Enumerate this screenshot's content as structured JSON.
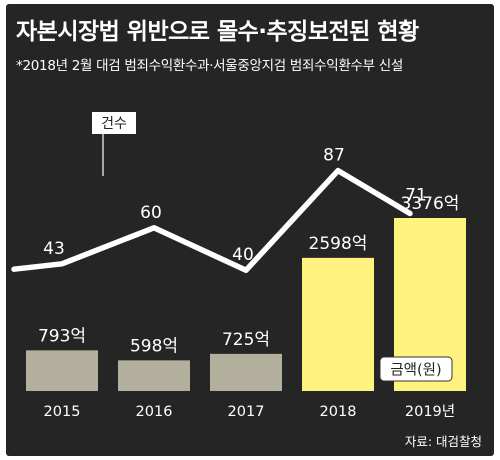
{
  "title": "자본시장법 위반으로 몰수·추징보전된 현황",
  "subtitle": "*2018년 2월 대검 범죄수익환수과·서울중앙지검 범죄수익환수부 신설",
  "source": "자료: 대검찰청",
  "colors": {
    "background": "#252525",
    "bar_past": "#b2b09c",
    "bar_recent": "#fff27e",
    "line": "#ffffff",
    "text": "#ffffff",
    "label_box_bg": "#ffffff",
    "label_box_text": "#222222"
  },
  "chart_data": [
    {
      "type": "line",
      "series": [
        {
          "name": "건수",
          "values": [
            43,
            60,
            40,
            87,
            71
          ]
        }
      ],
      "categories": [
        "2015",
        "2016",
        "2017",
        "2018",
        "2019년"
      ],
      "value_labels": [
        "43",
        "60",
        "40",
        "87",
        "71"
      ],
      "legend_label": "건수"
    },
    {
      "type": "bar",
      "series": [
        {
          "name": "금액(원)",
          "values": [
            793,
            598,
            725,
            2598,
            3376
          ]
        }
      ],
      "categories": [
        "2015",
        "2016",
        "2017",
        "2018",
        "2019년"
      ],
      "value_labels": [
        "793억",
        "598억",
        "725억",
        "2598억",
        "3376억"
      ],
      "legend_label": "금액(원)"
    }
  ]
}
